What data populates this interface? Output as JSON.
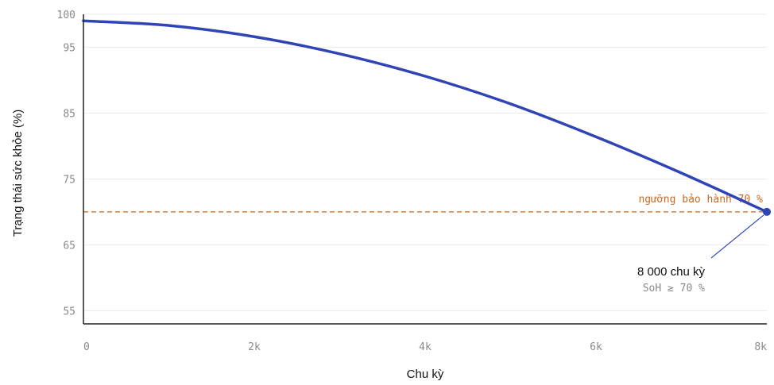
{
  "chart_data": {
    "type": "line",
    "xlabel": "Chu kỳ",
    "ylabel": "Trạng thái sức khỏe (%)",
    "xlim": [
      0,
      8000
    ],
    "ylim": [
      53,
      100
    ],
    "x_ticks": [
      {
        "value": 0,
        "label": "0"
      },
      {
        "value": 2000,
        "label": "2k"
      },
      {
        "value": 4000,
        "label": "4k"
      },
      {
        "value": 6000,
        "label": "6k"
      },
      {
        "value": 8000,
        "label": "8k"
      }
    ],
    "y_ticks": [
      {
        "value": 55,
        "label": "55"
      },
      {
        "value": 65,
        "label": "65"
      },
      {
        "value": 75,
        "label": "75"
      },
      {
        "value": 85,
        "label": "85"
      },
      {
        "value": 95,
        "label": "95"
      },
      {
        "value": 100,
        "label": "100"
      }
    ],
    "grid": "horizontal",
    "series": [
      {
        "color": "#2f45b5",
        "x": [
          0,
          1000,
          2000,
          3000,
          4000,
          5000,
          6000,
          7000,
          8000
        ],
        "y": [
          99,
          98.3,
          96.6,
          94,
          90.6,
          86.4,
          81.4,
          75.9,
          70
        ]
      }
    ],
    "threshold": {
      "value": 70,
      "label": "ngưỡng bảo hành 70 %",
      "color": "#c8823a"
    },
    "annotation": {
      "x": 8000,
      "y": 70,
      "label": "8 000 chu kỳ",
      "sublabel": "SoH ≥ 70 %"
    }
  }
}
